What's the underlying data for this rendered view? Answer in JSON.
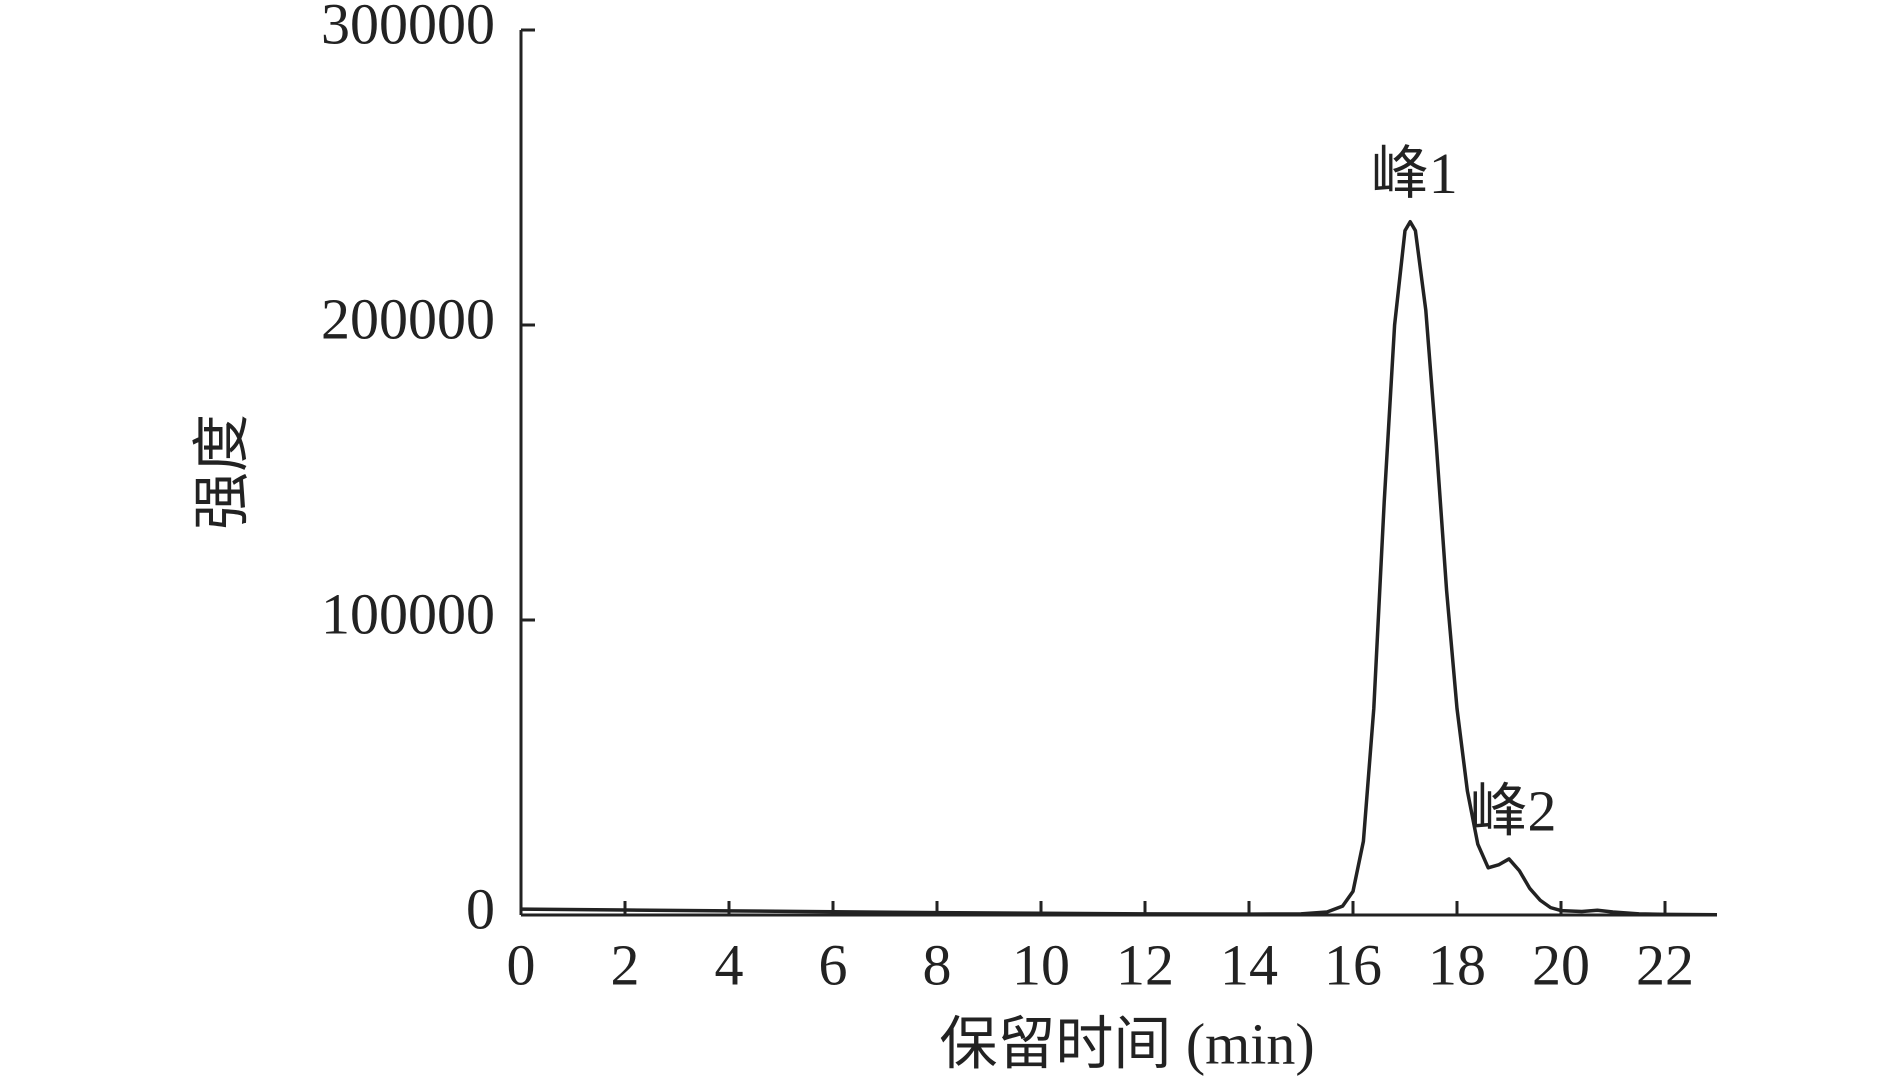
{
  "chart_data": {
    "type": "line",
    "x_label": "保留时间 (min)",
    "y_label": "强度",
    "x": [
      0,
      2,
      4,
      6,
      8,
      10,
      12,
      14,
      15,
      15.5,
      15.8,
      16,
      16.2,
      16.4,
      16.6,
      16.8,
      17,
      17.1,
      17.2,
      17.4,
      17.6,
      17.8,
      18,
      18.2,
      18.4,
      18.6,
      18.8,
      19,
      19.2,
      19.4,
      19.6,
      19.8,
      20,
      20.4,
      20.7,
      21,
      21.5,
      22,
      23
    ],
    "series": [
      {
        "color": "#222222",
        "values": [
          2000,
          1700,
          1400,
          1100,
          800,
          600,
          400,
          300,
          400,
          1000,
          3000,
          8000,
          25000,
          70000,
          140000,
          200000,
          232000,
          235000,
          232000,
          205000,
          160000,
          110000,
          70000,
          42000,
          24000,
          16000,
          17000,
          19000,
          15000,
          9000,
          5000,
          2500,
          1500,
          1200,
          1600,
          1000,
          400,
          200,
          100
        ]
      }
    ],
    "annotations": [
      {
        "text": "峰1",
        "x": 17.1,
        "y": 235000
      },
      {
        "text": "峰2",
        "x": 19.0,
        "y": 19000
      }
    ],
    "xlim": [
      0,
      23
    ],
    "xticks": [
      0,
      2,
      4,
      6,
      8,
      10,
      12,
      14,
      16,
      18,
      20,
      22
    ],
    "ylim": [
      0,
      300000
    ],
    "yticks": [
      0,
      100000,
      200000,
      300000
    ],
    "grid": false
  }
}
